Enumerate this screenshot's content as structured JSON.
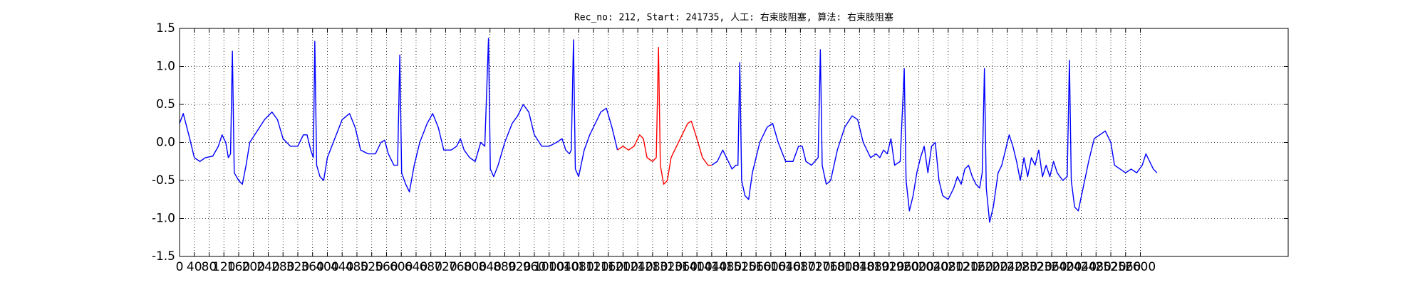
{
  "chart_data": {
    "type": "line",
    "title": "Rec_no: 212, Start: 241735, 人工: 右束肢阻塞, 算法: 右束肢阻塞",
    "xlim": [
      0,
      3000
    ],
    "xticks": [
      0,
      40,
      80,
      120,
      160,
      200,
      240,
      280,
      320,
      360,
      400,
      440,
      480,
      520,
      560,
      600,
      640,
      680,
      720,
      760,
      800,
      840,
      880,
      920,
      960,
      1000,
      1040,
      1080,
      1120,
      1160,
      1200,
      1240,
      1280,
      1320,
      1360,
      1400,
      1440,
      1480,
      1520,
      1560,
      1600,
      1640,
      1680,
      1720,
      1760,
      1800,
      1840,
      1880,
      1920,
      1960,
      2000,
      2040,
      2080,
      2120,
      2160,
      2200,
      2240,
      2280,
      2320,
      2360,
      2400,
      2440,
      2480,
      2520,
      2560,
      2600
    ],
    "ylim": [
      -1.5,
      1.5
    ],
    "yticks": [
      -1.5,
      {
        "value": -1,
        "label": "-1.0"
      },
      -0.5,
      {
        "value": 0,
        "label": "0.0"
      },
      0.5,
      {
        "value": 1,
        "label": "1.0"
      },
      1.5
    ],
    "grid": true,
    "series": [
      {
        "color": "#0000ff",
        "x": [
          0,
          10,
          25,
          40,
          55,
          70,
          90,
          105,
          115,
          125,
          132,
          138,
          143,
          148,
          160,
          170,
          180,
          190,
          210,
          230,
          250,
          265,
          280,
          300,
          320,
          335,
          345,
          355,
          362,
          366,
          371,
          380,
          390,
          400,
          420,
          440,
          460,
          475,
          490,
          510,
          530,
          545,
          555,
          565,
          580,
          590,
          596,
          601,
          612,
          622,
          635,
          650,
          670,
          685,
          700,
          715,
          735,
          750,
          760,
          770,
          785,
          800,
          815,
          826,
          836,
          841,
          850,
          862,
          880,
          900,
          915,
          930,
          945,
          960,
          980,
          1000,
          1020,
          1035,
          1045,
          1055,
          1060,
          1066,
          1071,
          1080,
          1095,
          1110,
          1125,
          1140,
          1155,
          1170,
          1185,
          1300,
          1440,
          1455,
          1470,
          1480,
          1495,
          1505,
          1511,
          1516,
          1521,
          1530,
          1540,
          1550,
          1570,
          1590,
          1605,
          1620,
          1640,
          1660,
          1675,
          1685,
          1695,
          1710,
          1728,
          1734,
          1739,
          1750,
          1762,
          1780,
          1800,
          1820,
          1835,
          1850,
          1870,
          1885,
          1895,
          1905,
          1915,
          1925,
          1935,
          1950,
          1961,
          1966,
          1975,
          1985,
          1995,
          2005,
          2015,
          2025,
          2035,
          2045,
          2055,
          2065,
          2080,
          2095,
          2105,
          2115,
          2125,
          2135,
          2145,
          2155,
          2165,
          2172,
          2178,
          2183,
          2192,
          2202,
          2215,
          2225,
          2235,
          2245,
          2255,
          2265,
          2275,
          2285,
          2295,
          2305,
          2315,
          2325,
          2335,
          2345,
          2355,
          2365,
          2375,
          2390,
          2402,
          2408,
          2413,
          2422,
          2432,
          2445,
          2460,
          2475,
          2490,
          2505,
          2520,
          2530,
          2545,
          2560,
          2575,
          2590,
          2605,
          2615,
          2625,
          2635,
          2645
        ],
        "values": [
          0.25,
          0.38,
          0.1,
          -0.2,
          -0.25,
          -0.2,
          -0.18,
          -0.05,
          0.1,
          0.0,
          -0.2,
          -0.15,
          1.2,
          -0.4,
          -0.5,
          -0.55,
          -0.3,
          0.0,
          0.15,
          0.3,
          0.4,
          0.3,
          0.05,
          -0.05,
          -0.05,
          0.1,
          0.1,
          -0.1,
          -0.2,
          1.33,
          -0.3,
          -0.45,
          -0.5,
          -0.2,
          0.05,
          0.3,
          0.38,
          0.2,
          -0.1,
          -0.15,
          -0.15,
          0.0,
          0.03,
          -0.15,
          -0.3,
          -0.3,
          1.15,
          -0.4,
          -0.55,
          -0.65,
          -0.3,
          0.0,
          0.25,
          0.38,
          0.2,
          -0.1,
          -0.1,
          -0.05,
          0.05,
          -0.1,
          -0.2,
          -0.25,
          0.0,
          -0.05,
          1.37,
          -0.35,
          -0.45,
          -0.3,
          0.0,
          0.25,
          0.35,
          0.5,
          0.4,
          0.1,
          -0.05,
          -0.05,
          0.0,
          0.05,
          -0.1,
          -0.15,
          -0.1,
          1.35,
          -0.35,
          -0.45,
          -0.1,
          0.1,
          0.25,
          0.4,
          0.45,
          0.2,
          -0.1,
          null,
          -0.3,
          -0.25,
          -0.1,
          -0.2,
          -0.35,
          -0.3,
          -0.3,
          1.05,
          -0.5,
          -0.7,
          -0.75,
          -0.4,
          0.0,
          0.2,
          0.25,
          0.0,
          -0.25,
          -0.25,
          -0.05,
          -0.05,
          -0.25,
          -0.3,
          -0.2,
          1.22,
          -0.3,
          -0.55,
          -0.5,
          -0.1,
          0.2,
          0.35,
          0.3,
          0.0,
          -0.2,
          -0.15,
          -0.2,
          -0.1,
          -0.15,
          0.05,
          -0.3,
          -0.25,
          0.97,
          -0.5,
          -0.9,
          -0.7,
          -0.4,
          -0.2,
          -0.05,
          -0.4,
          -0.05,
          0.0,
          -0.5,
          -0.7,
          -0.75,
          -0.6,
          -0.45,
          -0.55,
          -0.35,
          -0.3,
          -0.45,
          -0.55,
          -0.6,
          -0.4,
          0.97,
          -0.6,
          -1.05,
          -0.85,
          -0.4,
          -0.3,
          -0.1,
          0.1,
          -0.05,
          -0.25,
          -0.5,
          -0.2,
          -0.45,
          -0.2,
          -0.3,
          -0.1,
          -0.45,
          -0.3,
          -0.45,
          -0.25,
          -0.4,
          -0.5,
          -0.45,
          1.08,
          -0.5,
          -0.85,
          -0.9,
          -0.6,
          -0.25,
          0.05,
          0.1,
          0.15,
          0.0,
          -0.3,
          -0.35,
          -0.4,
          -0.35,
          -0.4,
          -0.3,
          -0.15,
          -0.25,
          -0.35,
          -0.4
        ]
      },
      {
        "color": "#ff0000",
        "x": [
          1185,
          1200,
          1215,
          1230,
          1245,
          1255,
          1265,
          1280,
          1290,
          1296,
          1301,
          1310,
          1320,
          1330,
          1345,
          1360,
          1375,
          1385,
          1400,
          1415,
          1430,
          1440
        ],
        "values": [
          -0.1,
          -0.05,
          -0.1,
          -0.05,
          0.1,
          0.05,
          -0.2,
          -0.25,
          -0.2,
          1.25,
          -0.3,
          -0.55,
          -0.5,
          -0.2,
          -0.05,
          0.1,
          0.25,
          0.28,
          0.05,
          -0.2,
          -0.3,
          -0.3
        ]
      }
    ]
  }
}
